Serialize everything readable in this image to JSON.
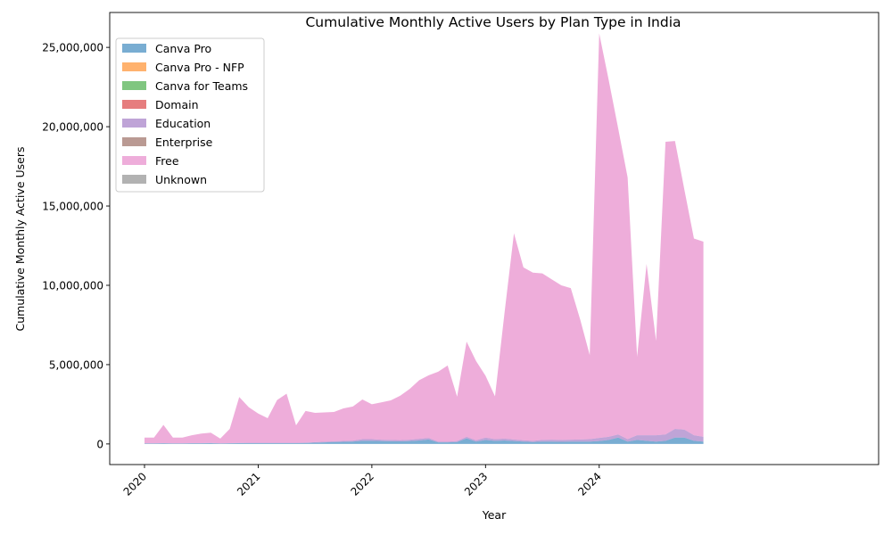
{
  "chart_data": {
    "type": "area",
    "stacked": true,
    "title": "Cumulative Monthly Active Users by Plan Type in India",
    "xlabel": "Year",
    "ylabel": "Cumulative Monthly Active Users",
    "xlim": [
      "2020-01",
      "2024-12"
    ],
    "ylim": [
      -1300000,
      27200000
    ],
    "y_ticks": [
      0,
      5000000,
      10000000,
      15000000,
      20000000,
      25000000
    ],
    "y_tick_labels": [
      "0",
      "5,000,000",
      "10,000,000",
      "15,000,000",
      "20,000,000",
      "25,000,000"
    ],
    "x_ticks": [
      "2020-01",
      "2021-01",
      "2022-01",
      "2023-01",
      "2024-01"
    ],
    "x_tick_labels": [
      "2020",
      "2021",
      "2022",
      "2023",
      "2024"
    ],
    "legend_position": "upper-left",
    "grid": false,
    "x": [
      "2020-01",
      "2020-02",
      "2020-03",
      "2020-04",
      "2020-05",
      "2020-06",
      "2020-07",
      "2020-08",
      "2020-09",
      "2020-10",
      "2020-11",
      "2020-12",
      "2021-01",
      "2021-02",
      "2021-03",
      "2021-04",
      "2021-05",
      "2021-06",
      "2021-07",
      "2021-08",
      "2021-09",
      "2021-10",
      "2021-11",
      "2021-12",
      "2022-01",
      "2022-02",
      "2022-03",
      "2022-04",
      "2022-05",
      "2022-06",
      "2022-07",
      "2022-08",
      "2022-09",
      "2022-10",
      "2022-11",
      "2022-12",
      "2023-01",
      "2023-02",
      "2023-03",
      "2023-04",
      "2023-05",
      "2023-06",
      "2023-07",
      "2023-08",
      "2023-09",
      "2023-10",
      "2023-11",
      "2023-12",
      "2024-01",
      "2024-02",
      "2024-03",
      "2024-04",
      "2024-05",
      "2024-06",
      "2024-07",
      "2024-08",
      "2024-09",
      "2024-10",
      "2024-11",
      "2024-12"
    ],
    "series": [
      {
        "name": "Canva Pro",
        "color": "#1f77b4",
        "values": [
          30000,
          30000,
          40000,
          30000,
          30000,
          40000,
          40000,
          50000,
          30000,
          40000,
          50000,
          50000,
          50000,
          50000,
          50000,
          50000,
          50000,
          60000,
          80000,
          100000,
          120000,
          130000,
          150000,
          200000,
          200000,
          180000,
          170000,
          160000,
          180000,
          220000,
          280000,
          100000,
          100000,
          120000,
          350000,
          150000,
          250000,
          200000,
          220000,
          180000,
          150000,
          120000,
          150000,
          150000,
          130000,
          150000,
          150000,
          150000,
          180000,
          250000,
          400000,
          150000,
          250000,
          200000,
          150000,
          200000,
          400000,
          400000,
          200000,
          150000
        ]
      },
      {
        "name": "Canva Pro - NFP",
        "color": "#ff7f0e",
        "values": [
          0,
          0,
          0,
          0,
          0,
          0,
          0,
          0,
          0,
          0,
          0,
          0,
          0,
          0,
          0,
          0,
          0,
          0,
          0,
          0,
          0,
          0,
          0,
          0,
          0,
          0,
          0,
          0,
          0,
          0,
          0,
          0,
          0,
          0,
          0,
          0,
          0,
          0,
          0,
          0,
          0,
          0,
          0,
          0,
          0,
          0,
          0,
          0,
          0,
          0,
          0,
          0,
          0,
          0,
          0,
          0,
          0,
          0,
          0,
          0
        ]
      },
      {
        "name": "Canva for Teams",
        "color": "#2ca02c",
        "values": [
          0,
          0,
          0,
          0,
          0,
          0,
          0,
          0,
          0,
          0,
          0,
          0,
          0,
          0,
          0,
          0,
          0,
          0,
          0,
          0,
          0,
          0,
          0,
          0,
          0,
          0,
          0,
          0,
          0,
          0,
          0,
          0,
          0,
          0,
          0,
          0,
          0,
          0,
          0,
          0,
          0,
          0,
          0,
          0,
          0,
          0,
          0,
          0,
          0,
          0,
          0,
          0,
          0,
          0,
          0,
          0,
          0,
          0,
          0,
          0
        ]
      },
      {
        "name": "Domain",
        "color": "#d62728",
        "values": [
          0,
          0,
          0,
          0,
          0,
          0,
          0,
          0,
          0,
          0,
          0,
          0,
          0,
          0,
          0,
          0,
          0,
          0,
          0,
          0,
          0,
          0,
          0,
          0,
          0,
          0,
          0,
          0,
          0,
          0,
          0,
          0,
          0,
          0,
          0,
          0,
          0,
          0,
          0,
          0,
          0,
          0,
          0,
          0,
          0,
          0,
          0,
          0,
          0,
          0,
          0,
          0,
          0,
          0,
          0,
          0,
          0,
          0,
          0,
          0
        ]
      },
      {
        "name": "Education",
        "color": "#9467bd",
        "values": [
          10000,
          10000,
          10000,
          10000,
          10000,
          10000,
          10000,
          10000,
          10000,
          10000,
          10000,
          20000,
          20000,
          20000,
          20000,
          20000,
          20000,
          20000,
          30000,
          40000,
          50000,
          60000,
          60000,
          100000,
          100000,
          90000,
          80000,
          80000,
          90000,
          100000,
          100000,
          50000,
          50000,
          60000,
          100000,
          80000,
          150000,
          100000,
          120000,
          100000,
          80000,
          80000,
          100000,
          120000,
          120000,
          120000,
          130000,
          150000,
          200000,
          200000,
          200000,
          150000,
          300000,
          350000,
          400000,
          400000,
          550000,
          500000,
          350000,
          300000
        ]
      },
      {
        "name": "Enterprise",
        "color": "#8c564b",
        "values": [
          0,
          0,
          0,
          0,
          0,
          0,
          0,
          0,
          0,
          0,
          0,
          0,
          0,
          0,
          0,
          0,
          0,
          0,
          0,
          0,
          0,
          0,
          0,
          0,
          0,
          0,
          0,
          0,
          0,
          0,
          0,
          0,
          0,
          0,
          0,
          0,
          0,
          0,
          0,
          0,
          0,
          0,
          0,
          0,
          0,
          0,
          0,
          0,
          0,
          0,
          0,
          0,
          0,
          0,
          0,
          0,
          0,
          0,
          0,
          0
        ]
      },
      {
        "name": "Free",
        "color": "#e377c2",
        "values": [
          360000,
          360000,
          1150000,
          360000,
          360000,
          500000,
          600000,
          650000,
          300000,
          900000,
          2900000,
          2250000,
          1850000,
          1550000,
          2700000,
          3100000,
          1100000,
          2000000,
          1850000,
          1850000,
          1850000,
          2050000,
          2150000,
          2500000,
          2200000,
          2350000,
          2500000,
          2800000,
          3200000,
          3700000,
          3950000,
          4400000,
          4800000,
          2800000,
          6000000,
          5000000,
          3900000,
          2700000,
          7900000,
          13000000,
          10900000,
          10600000,
          10500000,
          10100000,
          9750000,
          9550000,
          7550000,
          5300000,
          25500000,
          22500000,
          19300000,
          16500000,
          4950000,
          10800000,
          5950000,
          18450000,
          18150000,
          15100000,
          12400000,
          12300000
        ]
      },
      {
        "name": "Unknown",
        "color": "#7f7f7f",
        "values": [
          0,
          0,
          0,
          0,
          0,
          0,
          0,
          0,
          0,
          0,
          0,
          0,
          0,
          0,
          0,
          0,
          0,
          0,
          0,
          0,
          0,
          0,
          0,
          0,
          0,
          0,
          0,
          0,
          0,
          0,
          0,
          0,
          0,
          0,
          0,
          0,
          0,
          0,
          0,
          0,
          0,
          0,
          0,
          0,
          0,
          0,
          0,
          0,
          0,
          0,
          0,
          0,
          0,
          0,
          0,
          0,
          0,
          0,
          0,
          0
        ]
      }
    ]
  }
}
